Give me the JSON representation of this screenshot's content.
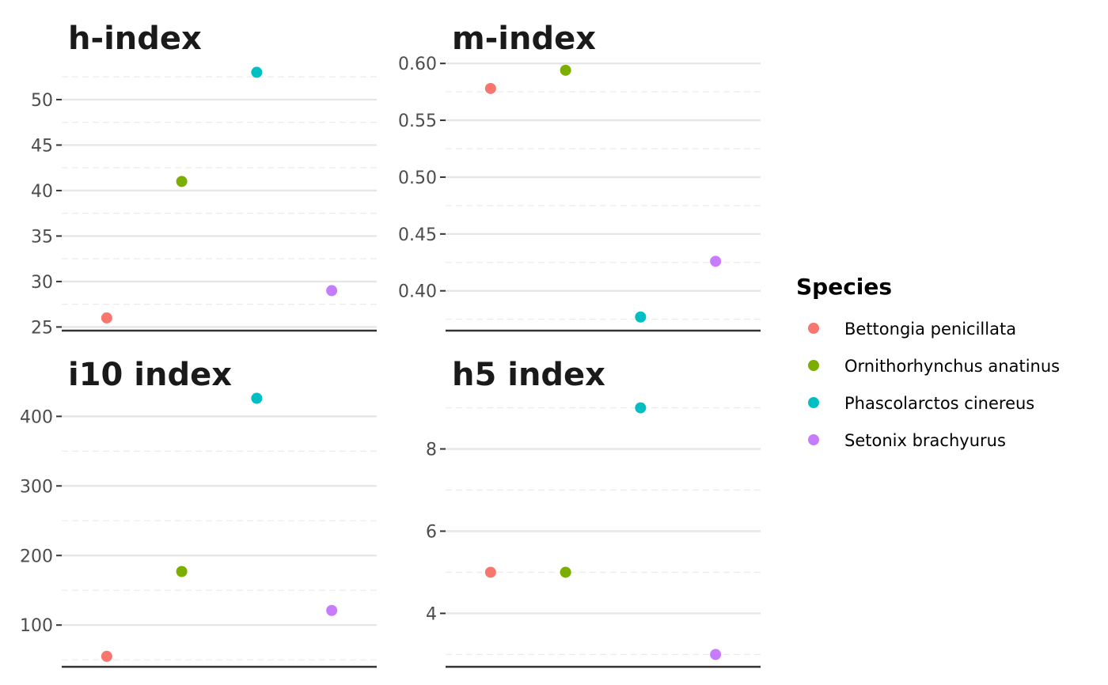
{
  "chart_data": [
    {
      "type": "scatter",
      "title": "h-index",
      "ylim": [
        24.6,
        54.6
      ],
      "yticks": [
        25,
        30,
        35,
        40,
        45,
        50
      ],
      "ytick_labels": [
        "25",
        "30",
        "35",
        "40",
        "45",
        "50"
      ],
      "categories": [
        "Bettongia penicillata",
        "Ornithorhynchus anatinus",
        "Phascolarctos cinereus",
        "Setonix brachyurus"
      ],
      "values": [
        26,
        41,
        53,
        29
      ],
      "grid": true
    },
    {
      "type": "scatter",
      "title": "m-index",
      "ylim": [
        0.365,
        0.605
      ],
      "yticks": [
        0.4,
        0.45,
        0.5,
        0.55,
        0.6
      ],
      "ytick_labels": [
        "0.40",
        "0.45",
        "0.50",
        "0.55",
        "0.60"
      ],
      "categories": [
        "Bettongia penicillata",
        "Ornithorhynchus anatinus",
        "Phascolarctos cinereus",
        "Setonix brachyurus"
      ],
      "values": [
        0.578,
        0.594,
        0.377,
        0.426
      ],
      "grid": true
    },
    {
      "type": "scatter",
      "title": "i10 index",
      "ylim": [
        40,
        430
      ],
      "yticks": [
        100,
        200,
        300,
        400
      ],
      "ytick_labels": [
        "100",
        "200",
        "300",
        "400"
      ],
      "categories": [
        "Bettongia penicillata",
        "Ornithorhynchus anatinus",
        "Phascolarctos cinereus",
        "Setonix brachyurus"
      ],
      "values": [
        55,
        177,
        426,
        121
      ],
      "grid": true
    },
    {
      "type": "scatter",
      "title": "h5 index",
      "ylim": [
        2.7,
        9.3
      ],
      "yticks": [
        4,
        6,
        8
      ],
      "ytick_labels": [
        "4",
        "6",
        "8"
      ],
      "categories": [
        "Bettongia penicillata",
        "Ornithorhynchus anatinus",
        "Phascolarctos cinereus",
        "Setonix brachyurus"
      ],
      "values": [
        5,
        5,
        9,
        3
      ],
      "grid": true
    }
  ],
  "legend": {
    "title": "Species",
    "placement": "right",
    "items": [
      {
        "label": "Bettongia penicillata",
        "color": "#F8766D"
      },
      {
        "label": "Ornithorhynchus anatinus",
        "color": "#7CAE00"
      },
      {
        "label": "Phascolarctos cinereus",
        "color": "#00BFC4"
      },
      {
        "label": "Setonix brachyurus",
        "color": "#C77CFF"
      }
    ]
  },
  "colors": {
    "grid_major": "#e6e6e6",
    "grid_minor": "#ebebeb",
    "axis_line": "#333333",
    "tick_text": "#4d4d4d"
  }
}
